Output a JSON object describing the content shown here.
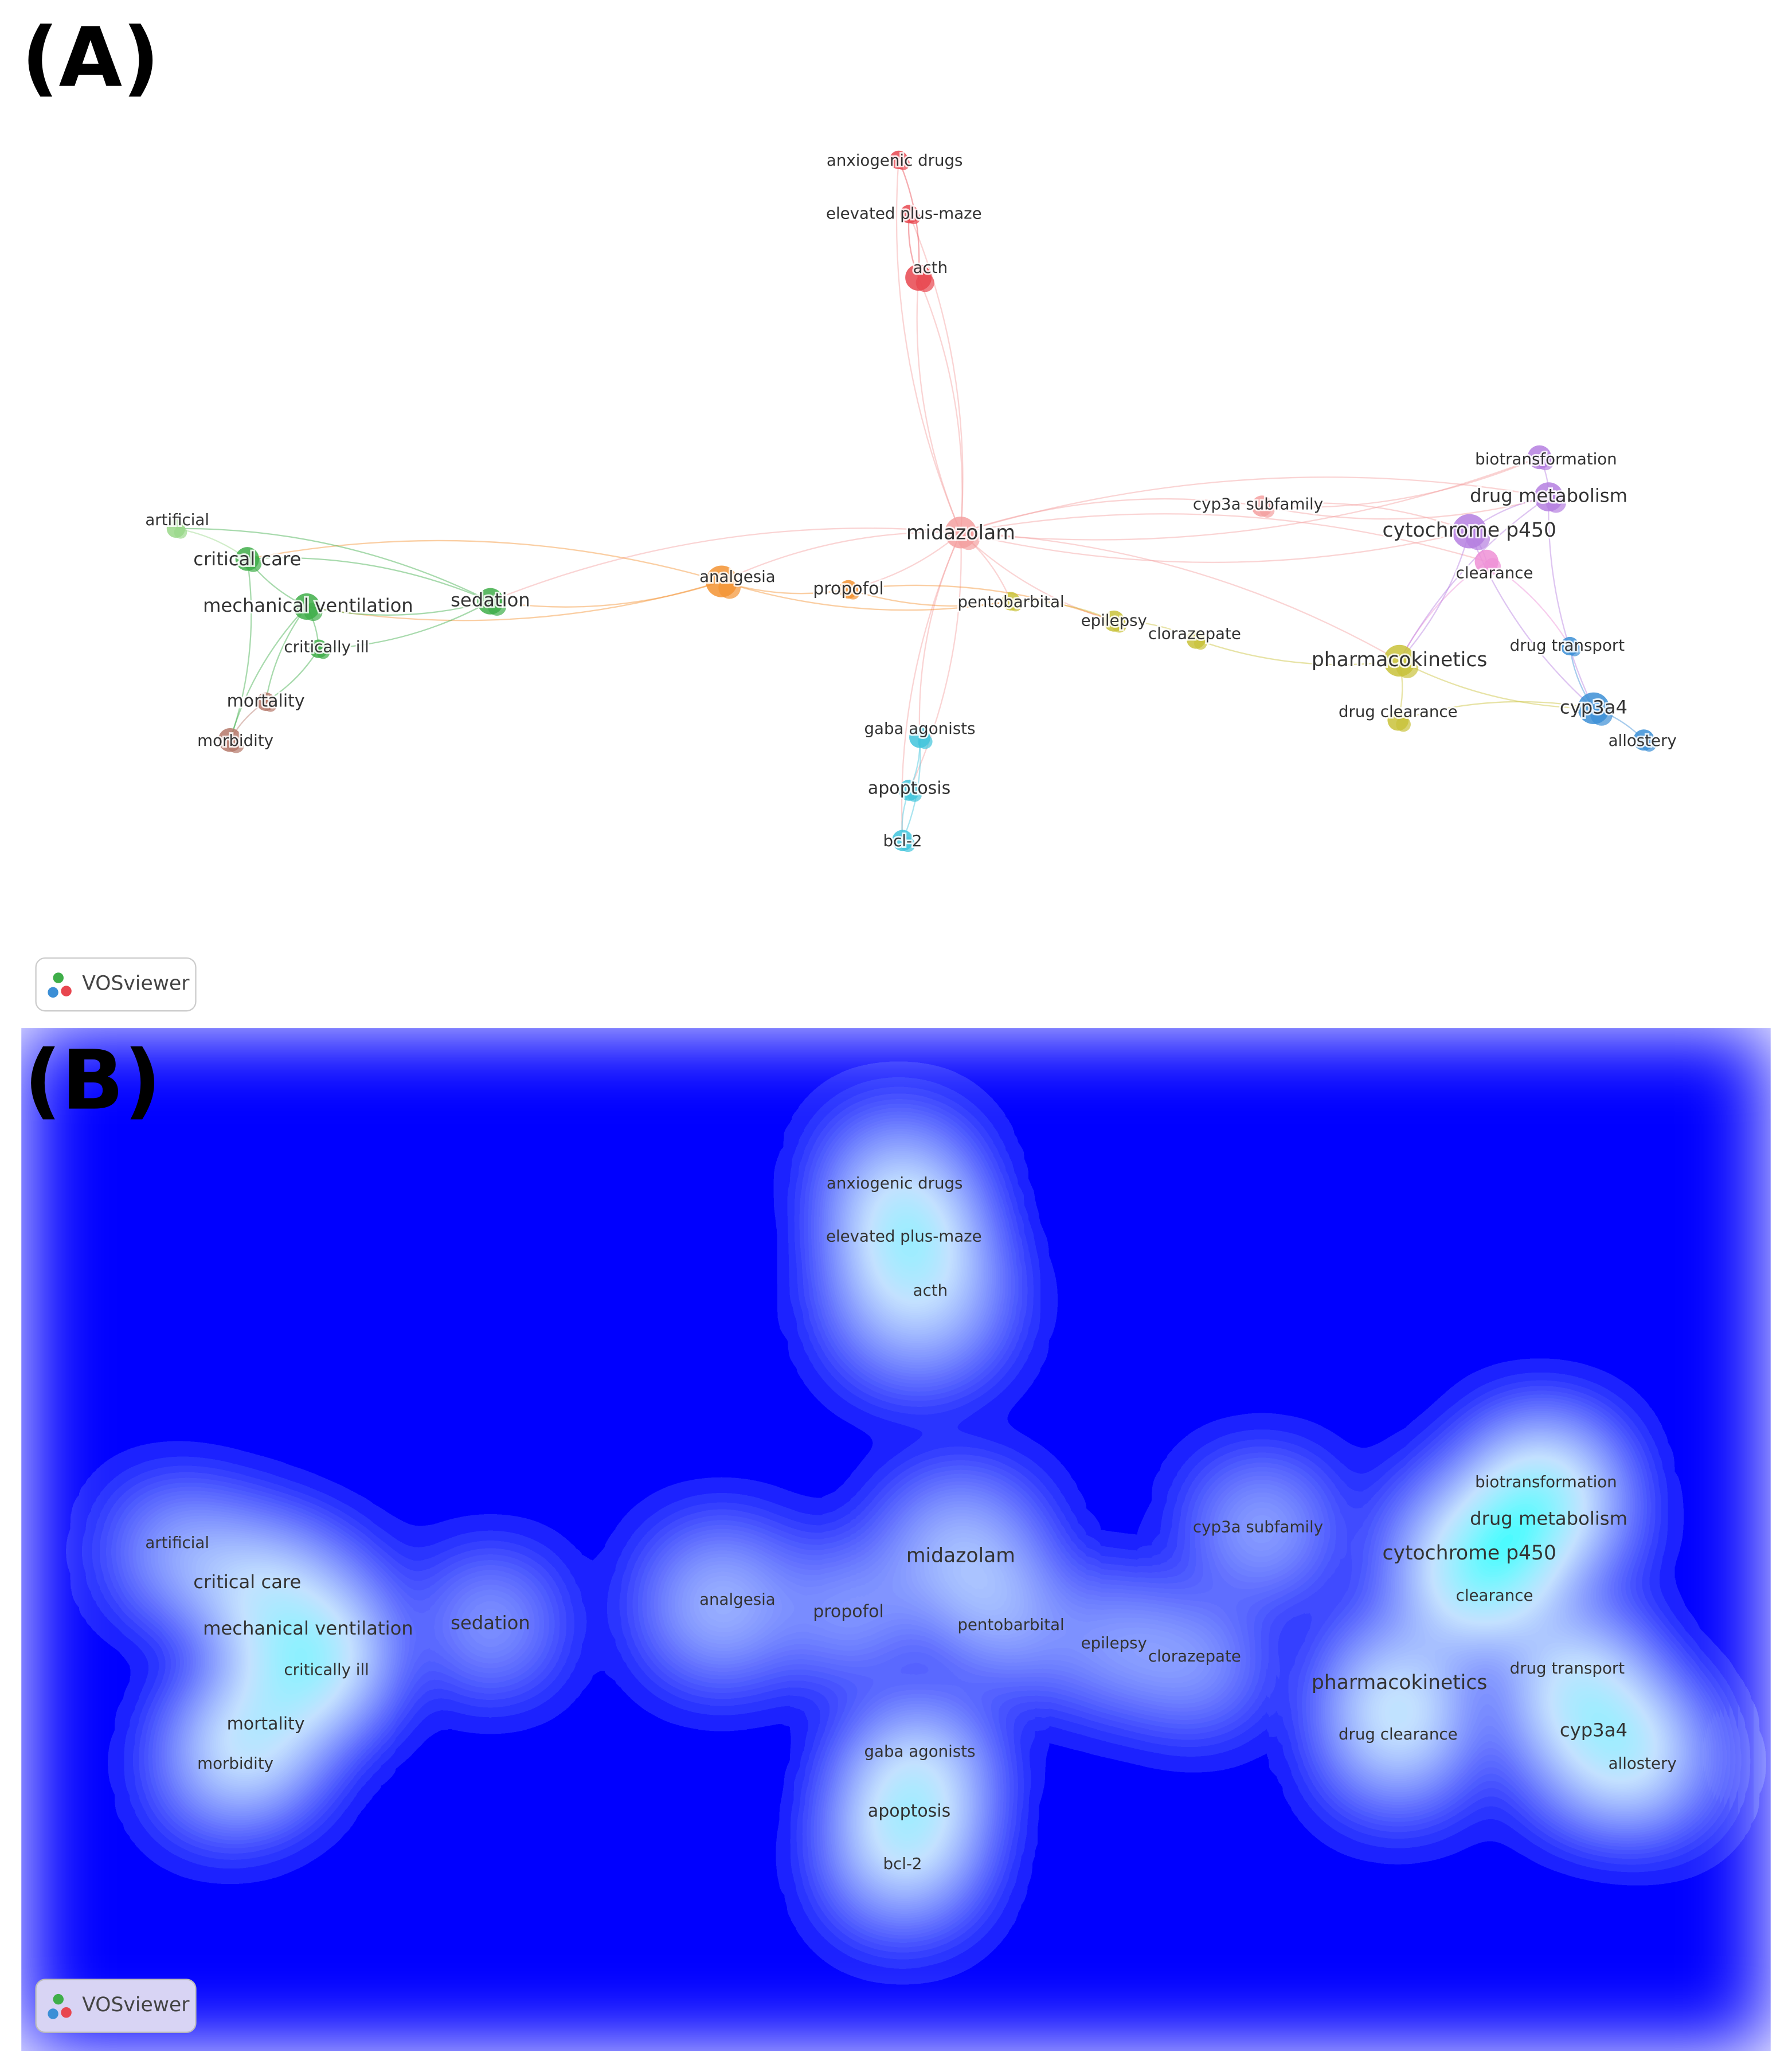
{
  "panels": [
    {
      "label": "(A)",
      "logo": "VOSviewer"
    },
    {
      "label": "(B)",
      "logo": "VOSviewer"
    }
  ],
  "nodes": [
    {
      "label": "anxiogenic drugs",
      "color": "#e8464f"
    },
    {
      "label": "elevated plus-maze",
      "color": "#e8464f"
    },
    {
      "label": "acth",
      "color": "#e8464f"
    },
    {
      "label": "midazolam",
      "color": "#f4a0a0"
    },
    {
      "label": "cyp3a subfamily",
      "color": "#f4a0a0"
    },
    {
      "label": "biotransformation",
      "color": "#b57fe0"
    },
    {
      "label": "drug metabolism",
      "color": "#b57fe0"
    },
    {
      "label": "cytochrome p450",
      "color": "#b57fe0"
    },
    {
      "label": "clearance",
      "color": "#ee90d6"
    },
    {
      "label": "artificial",
      "color": "#9ad88a"
    },
    {
      "label": "critical care",
      "color": "#3fae49"
    },
    {
      "label": "mechanical ventilation",
      "color": "#3fae49"
    },
    {
      "label": "critically ill",
      "color": "#3fae49"
    },
    {
      "label": "sedation",
      "color": "#3fae49"
    },
    {
      "label": "mortality",
      "color": "#b5786a"
    },
    {
      "label": "morbidity",
      "color": "#b5786a"
    },
    {
      "label": "analgesia",
      "color": "#f39332"
    },
    {
      "label": "propofol",
      "color": "#f39332"
    },
    {
      "label": "pentobarbital",
      "color": "#c9c23a"
    },
    {
      "label": "epilepsy",
      "color": "#c9c23a"
    },
    {
      "label": "clorazepate",
      "color": "#c9c23a"
    },
    {
      "label": "pharmacokinetics",
      "color": "#c9c23a"
    },
    {
      "label": "drug clearance",
      "color": "#c9c23a"
    },
    {
      "label": "drug transport",
      "color": "#3c8fd6"
    },
    {
      "label": "cyp3a4",
      "color": "#3c8fd6"
    },
    {
      "label": "allostery",
      "color": "#3c8fd6"
    },
    {
      "label": "gaba agonists",
      "color": "#41c4dc"
    },
    {
      "label": "apoptosis",
      "color": "#41c4dc"
    },
    {
      "label": "bcl-2",
      "color": "#41c4dc"
    }
  ]
}
